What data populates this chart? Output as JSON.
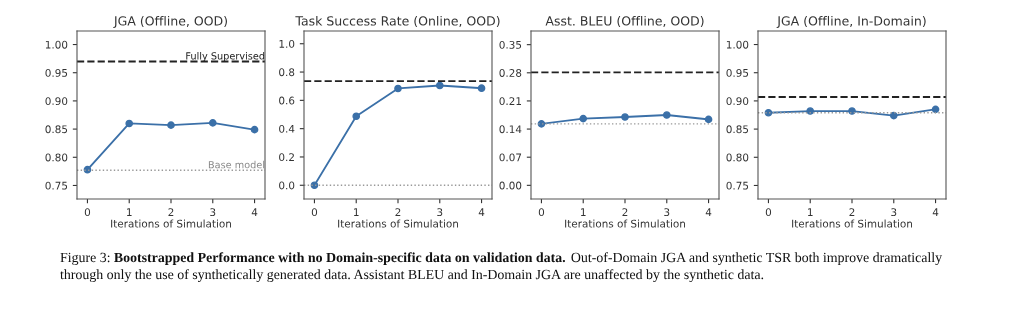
{
  "chart_data": [
    {
      "type": "line",
      "title": "JGA (Offline, OOD)",
      "xlabel": "Iterations of Simulation",
      "x": [
        0,
        1,
        2,
        3,
        4
      ],
      "series": [
        {
          "color": "#3b70a8",
          "values": [
            0.778,
            0.86,
            0.857,
            0.861,
            0.849
          ]
        }
      ],
      "xlim": [
        -0.25,
        4.25
      ],
      "xticks": [
        0,
        1,
        2,
        3,
        4
      ],
      "ylim": [
        0.726,
        1.024
      ],
      "yticks": [
        {
          "value": 0.75,
          "label": "0.75"
        },
        {
          "value": 0.8,
          "label": "0.80"
        },
        {
          "value": 0.85,
          "label": "0.85"
        },
        {
          "value": 0.9,
          "label": "0.90"
        },
        {
          "value": 0.95,
          "label": "0.95"
        },
        {
          "value": 1.0,
          "label": "1.00"
        }
      ],
      "ref_lines": [
        {
          "axis": "y",
          "value": 0.97,
          "label": "Fully Supervised",
          "color": "#222222",
          "line_style": "dashed"
        },
        {
          "axis": "y",
          "value": 0.777,
          "label": "Base model",
          "color": "#999999",
          "line_style": "dotted"
        }
      ],
      "marker": "circle",
      "grid": false,
      "annotations": [
        "Figure 3:",
        "Bootstrapped Performance with no Domain-specific data on validation data.",
        "Out-of-Domain JGA and synthetic TSR both improve dramatically through only the use of synthetically generated data. Assistant BLEU and In-Domain JGA are unaffected by the synthetic data."
      ]
    },
    {
      "type": "line",
      "title": "Task Success Rate (Online, OOD)",
      "xlabel": "Iterations of Simulation",
      "x": [
        0,
        1,
        2,
        3,
        4
      ],
      "series": [
        {
          "color": "#3b70a8",
          "values": [
            0.0,
            0.488,
            0.684,
            0.705,
            0.686
          ]
        }
      ],
      "xlim": [
        -0.25,
        4.25
      ],
      "xticks": [
        0,
        1,
        2,
        3,
        4
      ],
      "ylim": [
        -0.097,
        1.09
      ],
      "yticks": [
        {
          "value": 0,
          "label": "0.0"
        },
        {
          "value": 0.2,
          "label": "0.2"
        },
        {
          "value": 0.4,
          "label": "0.4"
        },
        {
          "value": 0.6,
          "label": "0.6"
        },
        {
          "value": 0.8,
          "label": "0.8"
        },
        {
          "value": 1.0,
          "label": "1.0"
        }
      ],
      "ref_lines": [
        {
          "axis": "y",
          "value": 0.736,
          "color": "#222222",
          "line_style": "dashed"
        },
        {
          "axis": "y",
          "value": 0.0,
          "color": "#999999",
          "line_style": "dotted"
        }
      ],
      "marker": "circle",
      "grid": false
    },
    {
      "type": "line",
      "title": "Asst. BLEU (Offline, OOD)",
      "xlabel": "Iterations of Simulation",
      "x": [
        0,
        1,
        2,
        3,
        4
      ],
      "series": [
        {
          "color": "#3b70a8",
          "values": [
            0.153,
            0.166,
            0.17,
            0.175,
            0.164
          ]
        }
      ],
      "xlim": [
        -0.25,
        4.25
      ],
      "xticks": [
        0,
        1,
        2,
        3,
        4
      ],
      "ylim": [
        -0.034,
        0.384
      ],
      "yticks": [
        {
          "value": 0,
          "label": "0.00"
        },
        0.07,
        0.14,
        0.21,
        0.28,
        0.35
      ],
      "ref_lines": [
        {
          "axis": "y",
          "value": 0.281,
          "color": "#222222",
          "line_style": "dashed"
        },
        {
          "axis": "y",
          "value": 0.153,
          "color": "#999999",
          "line_style": "dotted"
        }
      ],
      "marker": "circle",
      "grid": false
    },
    {
      "type": "line",
      "title": "JGA (Offline, In-Domain)",
      "xlabel": "Iterations of Simulation",
      "x": [
        0,
        1,
        2,
        3,
        4
      ],
      "series": [
        {
          "color": "#3b70a8",
          "values": [
            0.879,
            0.882,
            0.882,
            0.874,
            0.885
          ]
        }
      ],
      "xlim": [
        -0.25,
        4.25
      ],
      "xticks": [
        0,
        1,
        2,
        3,
        4
      ],
      "ylim": [
        0.726,
        1.024
      ],
      "yticks": [
        {
          "value": 0.75,
          "label": "0.75"
        },
        {
          "value": 0.8,
          "label": "0.80"
        },
        {
          "value": 0.85,
          "label": "0.85"
        },
        {
          "value": 0.9,
          "label": "0.90"
        },
        {
          "value": 0.95,
          "label": "0.95"
        },
        {
          "value": 1.0,
          "label": "1.00"
        }
      ],
      "ref_lines": [
        {
          "axis": "y",
          "value": 0.907,
          "color": "#222222",
          "line_style": "dashed"
        },
        {
          "axis": "y",
          "value": 0.879,
          "color": "#999999",
          "line_style": "dotted"
        }
      ],
      "marker": "circle",
      "grid": false
    }
  ]
}
